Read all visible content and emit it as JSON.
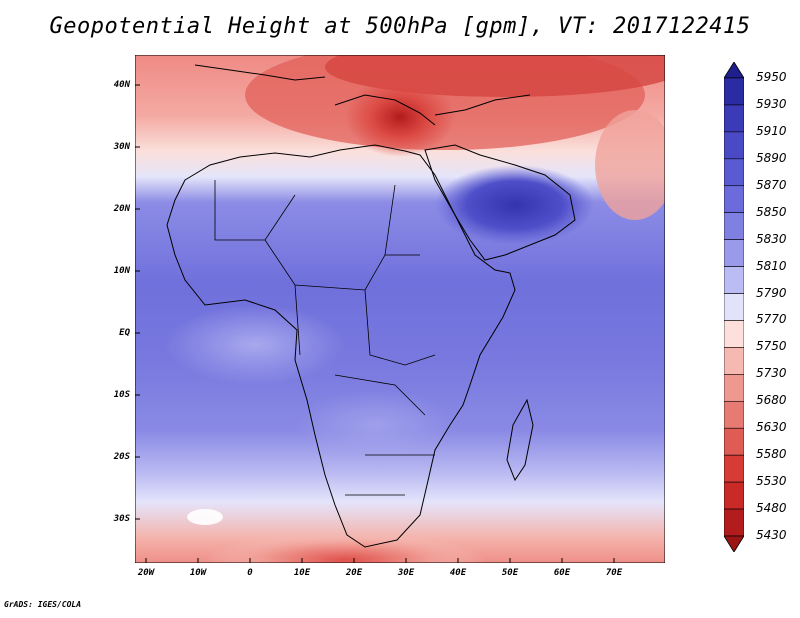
{
  "title": "Geopotential Height at 500hPa [gpm], VT: 2017122415",
  "credit": "GrADS: IGES/COLA",
  "map": {
    "lat_labels": [
      "40N",
      "30N",
      "20N",
      "10N",
      "EQ",
      "10S",
      "20S",
      "30S"
    ],
    "lon_labels": [
      "20W",
      "10W",
      "0",
      "10E",
      "20E",
      "30E",
      "40E",
      "50E",
      "60E",
      "70E"
    ]
  },
  "colorbar": {
    "levels": [
      "5950",
      "5930",
      "5910",
      "5890",
      "5870",
      "5850",
      "5830",
      "5810",
      "5790",
      "5770",
      "5750",
      "5730",
      "5680",
      "5630",
      "5580",
      "5530",
      "5480",
      "5430"
    ],
    "colors": [
      "#1e1e8c",
      "#2b2ba3",
      "#3b3bb8",
      "#4a4ac6",
      "#5a5ad2",
      "#6b6bdb",
      "#8080e3",
      "#9a9aeb",
      "#bcbcf4",
      "#e2e2fa",
      "#fde0dc",
      "#f6b9b1",
      "#ef9890",
      "#e77a72",
      "#df5c55",
      "#d63b36",
      "#c92a28",
      "#b31c1c",
      "#9c1515"
    ]
  }
}
